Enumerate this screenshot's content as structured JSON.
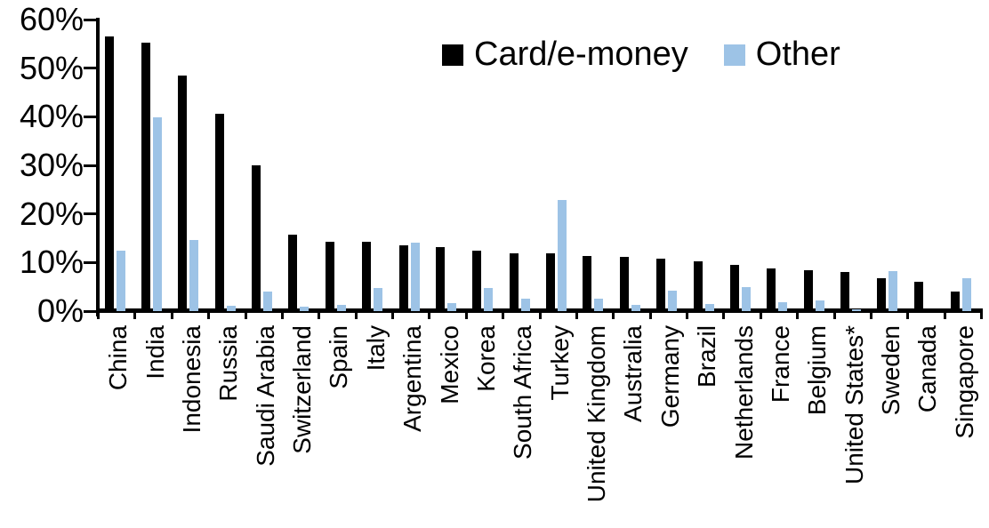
{
  "chart_data": {
    "type": "bar",
    "title": "",
    "xlabel": "",
    "ylabel": "",
    "ylim": [
      0,
      60
    ],
    "ytick_labels": [
      "0%",
      "10%",
      "20%",
      "30%",
      "40%",
      "50%",
      "60%"
    ],
    "grid": false,
    "legend_position": "top-center",
    "categories": [
      "China",
      "India",
      "Indonesia",
      "Russia",
      "Saudi Arabia",
      "Switzerland",
      "Spain",
      "Italy",
      "Argentina",
      "Mexico",
      "Korea",
      "South Africa",
      "Turkey",
      "United Kingdom",
      "Australia",
      "Germany",
      "Brazil",
      "Netherlands",
      "France",
      "Belgium",
      "United States*",
      "Sweden",
      "Canada",
      "Singapore"
    ],
    "series": [
      {
        "name": "Card/e-money",
        "color": "#000000",
        "values": [
          56.5,
          55.2,
          48.4,
          40.7,
          30.0,
          15.7,
          14.3,
          14.2,
          13.6,
          13.1,
          12.4,
          11.9,
          11.8,
          11.3,
          11.1,
          10.8,
          10.2,
          9.5,
          8.8,
          8.4,
          8.1,
          6.7,
          6.1,
          4.0
        ]
      },
      {
        "name": "Other",
        "color": "#9DC3E6",
        "values": [
          12.4,
          39.9,
          14.6,
          1.1,
          4.1,
          0.9,
          1.2,
          4.7,
          14.0,
          1.6,
          4.8,
          2.6,
          22.8,
          2.5,
          1.2,
          4.2,
          1.5,
          5.0,
          1.8,
          2.2,
          0.3,
          8.3,
          0,
          6.8
        ]
      }
    ]
  },
  "legend": {
    "card_label": "Card/e-money",
    "other_label": "Other"
  }
}
